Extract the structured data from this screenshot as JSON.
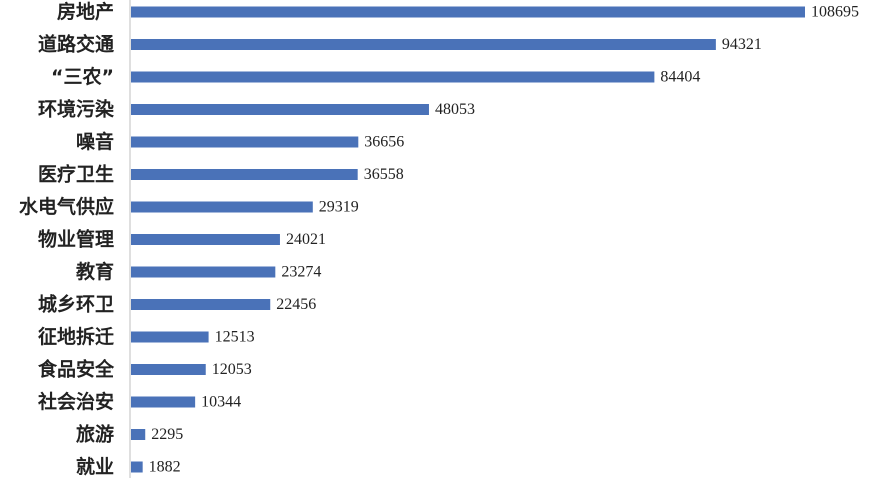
{
  "chart_data": {
    "type": "bar",
    "orientation": "horizontal",
    "categories": [
      "房地产",
      "道路交通",
      "“三农”",
      "环境污染",
      "噪音",
      "医疗卫生",
      "水电气供应",
      "物业管理",
      "教育",
      "城乡环卫",
      "征地拆迁",
      "食品安全",
      "社会治安",
      "旅游",
      "就业"
    ],
    "values": [
      108695,
      94321,
      84404,
      48053,
      36656,
      36558,
      29319,
      24021,
      23274,
      22456,
      12513,
      12053,
      10344,
      2295,
      1882
    ],
    "value_labels": [
      "108695",
      "94321",
      "84404",
      "48053",
      "36656",
      "36558",
      "29319",
      "24021",
      "23274",
      "22456",
      "12513",
      "12053",
      "10344",
      "2295",
      "1882"
    ],
    "title": "",
    "xlabel": "",
    "ylabel": "",
    "xlim": [
      0,
      108695
    ],
    "grid": false,
    "legend": "none",
    "colors": {
      "bar": "#4a72b8",
      "axis": "#bfbfbf",
      "text": "#222222"
    }
  }
}
